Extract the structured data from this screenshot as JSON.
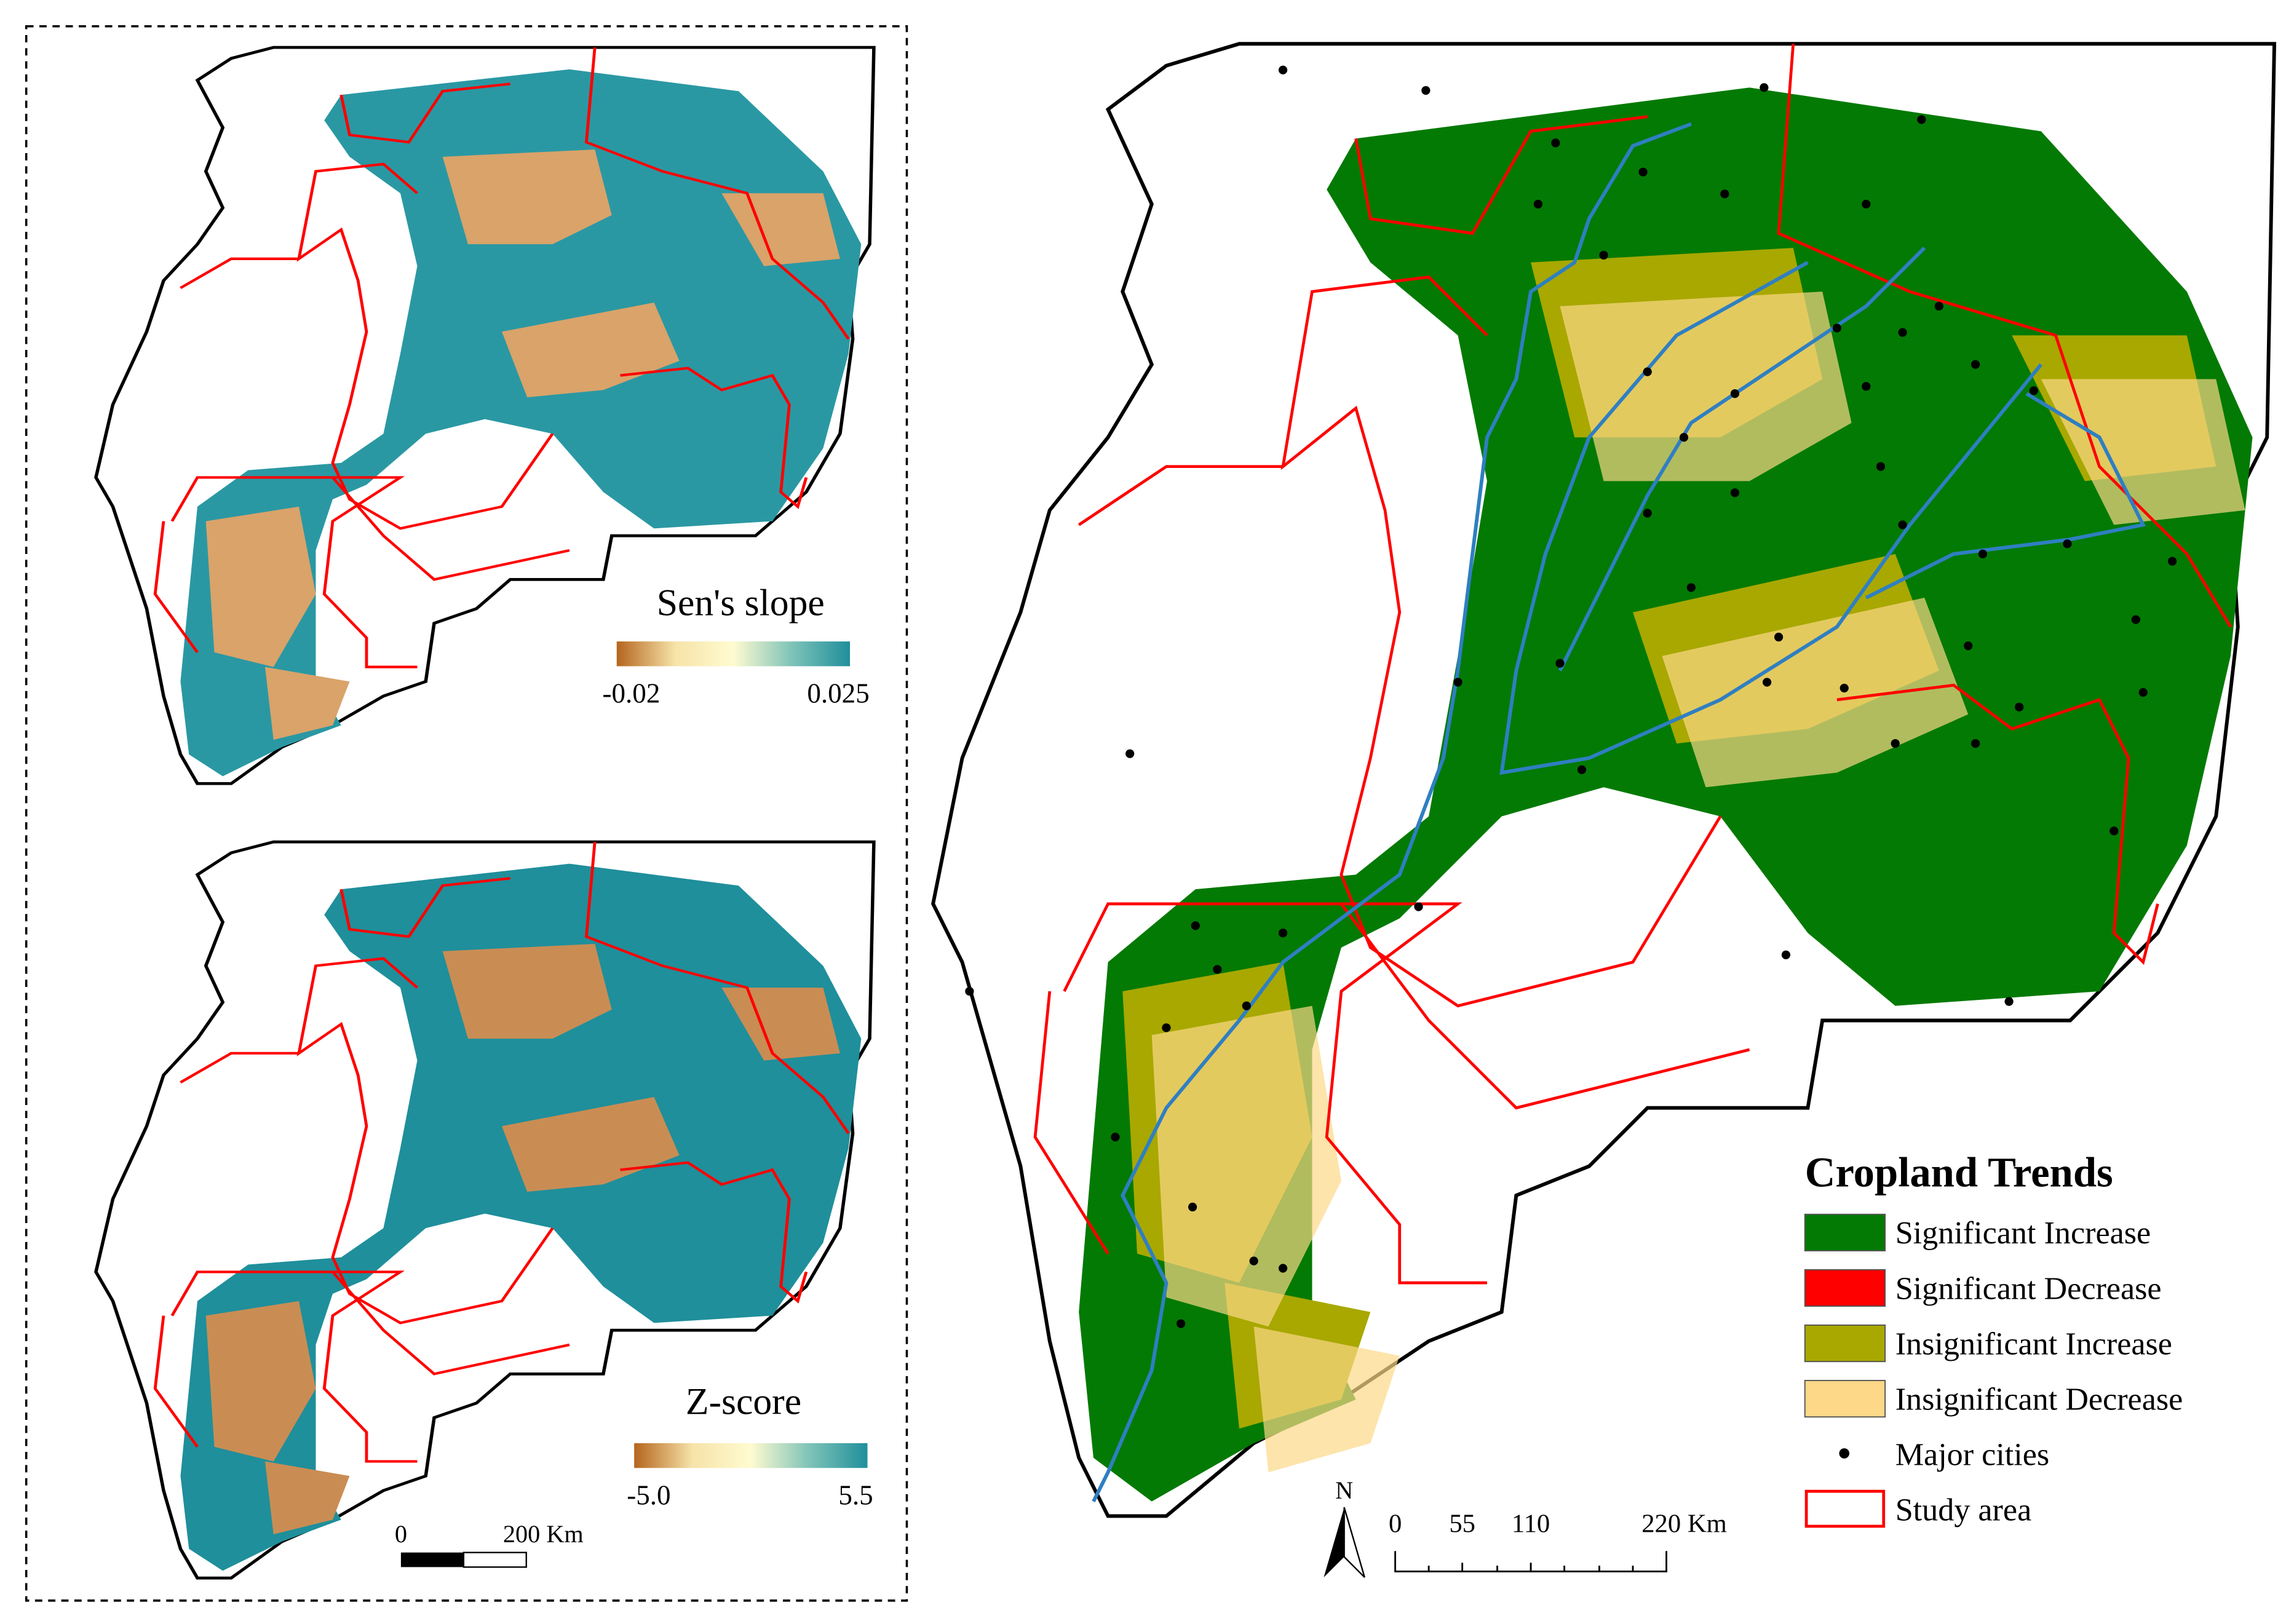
{
  "panels": [
    {
      "title": "Sen's slope",
      "colorbar": {
        "min_label": "-0.02",
        "max_label": "0.025",
        "colors": [
          "#b5651d",
          "#f6e3a8",
          "#fffbd0",
          "#7fc3b8",
          "#1f8f9b"
        ]
      }
    },
    {
      "title": "Z-score",
      "colorbar": {
        "min_label": "-5.0",
        "max_label": "5.5",
        "colors": [
          "#b5651d",
          "#f6e3a8",
          "#fffbd0",
          "#7fc3b8",
          "#1f8f9b"
        ]
      }
    }
  ],
  "small_scale_bar": {
    "labels": [
      "0",
      "200 Km"
    ]
  },
  "main_map": {
    "north": "N",
    "scale_bar": {
      "labels": [
        "0",
        "55",
        "110",
        "220 Km"
      ]
    },
    "legend": {
      "title": "Cropland Trends",
      "items": [
        {
          "label": "Significant Increase",
          "color": "#037a03",
          "marker": "box"
        },
        {
          "label": "Significant Decrease",
          "color": "#ff0000",
          "marker": "box"
        },
        {
          "label": "Insignificant Increase",
          "color": "#a8a800",
          "marker": "box"
        },
        {
          "label": "Insignificant Decrease",
          "color": "#fcd888",
          "marker": "box"
        },
        {
          "label": "Major cities",
          "color": "#000000",
          "marker": "dot"
        },
        {
          "label": "Study area",
          "color": "#ff0000",
          "marker": "outline"
        }
      ]
    }
  }
}
